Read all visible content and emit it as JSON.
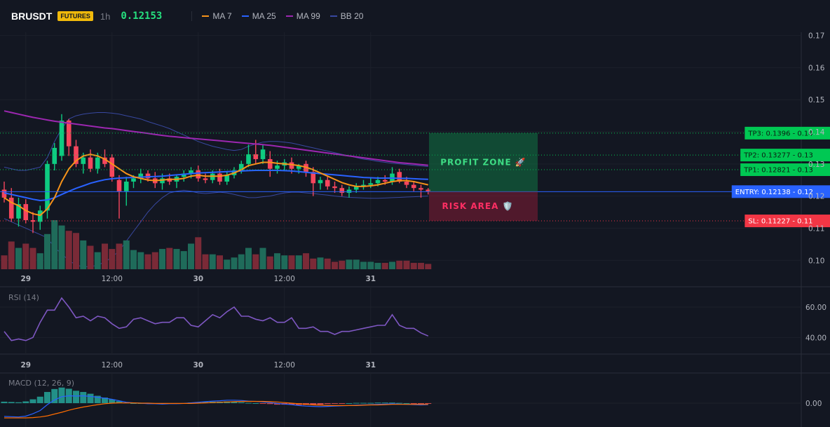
{
  "header": {
    "symbol": "BRUSDT",
    "badge": "FUTURES",
    "timeframe": "1h",
    "price": "0.12153",
    "legend": [
      {
        "label": "MA 7",
        "color": "#f7931a"
      },
      {
        "label": "MA 25",
        "color": "#2962ff"
      },
      {
        "label": "MA 99",
        "color": "#9c27b0"
      },
      {
        "label": "BB 20",
        "color": "#3848a0"
      }
    ]
  },
  "price_axis": [
    "0.17",
    "0.16",
    "0.15",
    "0.14",
    "0.13",
    "0.12",
    "0.11",
    "0.10"
  ],
  "price_ticks": [
    0.17,
    0.16,
    0.15,
    0.14,
    0.13,
    0.12,
    0.11,
    0.1
  ],
  "time_axis": [
    {
      "label": "29",
      "bold": true,
      "bar": 3
    },
    {
      "label": "12:00",
      "bold": false,
      "bar": 15
    },
    {
      "label": "30",
      "bold": true,
      "bar": 27
    },
    {
      "label": "12:00",
      "bold": false,
      "bar": 39
    },
    {
      "label": "31",
      "bold": true,
      "bar": 51
    }
  ],
  "levels": [
    {
      "name": "tp3",
      "label": "TP3: 0.1396",
      "axis": "0.14",
      "value": 0.1396,
      "color": "#00c853",
      "style": "dotted"
    },
    {
      "name": "tp2",
      "label": "TP2: 0.13277",
      "axis": "0.13",
      "value": 0.13277,
      "color": "#00c853",
      "style": "dotted"
    },
    {
      "name": "tp1",
      "label": "TP1: 0.12821",
      "axis": "0.13",
      "value": 0.12821,
      "color": "#00c853",
      "style": "dotted"
    },
    {
      "name": "entry",
      "label": "ENTRY: 0.12138",
      "axis": "0.12",
      "value": 0.12138,
      "color": "#2962ff",
      "style": "solid"
    },
    {
      "name": "sl",
      "label": "SL: 0.11227",
      "axis": "0.11",
      "value": 0.11227,
      "color": "#f23645",
      "style": "dotted"
    }
  ],
  "zones": {
    "profit_label": "PROFIT ZONE 🚀",
    "risk_label": "RISK AREA 🛡️"
  },
  "rsi": {
    "title": "RSI (14)",
    "axis": [
      "60.00",
      "40.00"
    ],
    "axis_values": [
      60,
      40
    ],
    "values": [
      44,
      38,
      39,
      38,
      40,
      50,
      58,
      58,
      66,
      60,
      53,
      54,
      51,
      54,
      53,
      49,
      46,
      47,
      52,
      53,
      51,
      49,
      50,
      50,
      53,
      53,
      48,
      47,
      51,
      55,
      53,
      57,
      60,
      54,
      54,
      52,
      51,
      53,
      50,
      50,
      53,
      46,
      46,
      47,
      44,
      44,
      42,
      44,
      44,
      45,
      46,
      47,
      48,
      48,
      55,
      48,
      46,
      46,
      43,
      41
    ]
  },
  "macd": {
    "title": "MACD (12, 26, 9)",
    "axis": "0.00",
    "macd_line": [
      -4.5,
      -4.6,
      -4.7,
      -4.4,
      -3.6,
      -2.5,
      -0.5,
      1.1,
      2.2,
      2.5,
      2.4,
      2.5,
      2.3,
      2.0,
      1.7,
      1.3,
      0.8,
      0.3,
      0.1,
      0.0,
      -0.2,
      -0.2,
      -0.3,
      -0.2,
      -0.2,
      -0.1,
      0.1,
      0.3,
      0.5,
      0.7,
      0.8,
      1.0,
      1.0,
      0.9,
      0.7,
      0.6,
      0.4,
      0.2,
      -0.1,
      -0.3,
      -0.5,
      -0.8,
      -1.0,
      -1.1,
      -1.2,
      -1.1,
      -1.0,
      -0.9,
      -0.8,
      -0.7,
      -0.6,
      -0.5,
      -0.4,
      -0.3,
      -0.2,
      -0.3,
      -0.4,
      -0.5,
      -0.6,
      -0.5
    ],
    "signal_line": [
      -5.0,
      -5.0,
      -5.0,
      -5.0,
      -4.9,
      -4.7,
      -4.3,
      -3.7,
      -3.1,
      -2.4,
      -1.8,
      -1.3,
      -0.9,
      -0.5,
      -0.2,
      0.0,
      0.1,
      0.1,
      0.1,
      0.0,
      0.0,
      -0.1,
      -0.1,
      -0.1,
      -0.1,
      -0.1,
      -0.1,
      0.0,
      0.1,
      0.2,
      0.3,
      0.4,
      0.5,
      0.6,
      0.6,
      0.6,
      0.6,
      0.5,
      0.4,
      0.2,
      0.0,
      -0.2,
      -0.4,
      -0.6,
      -0.7,
      -0.8,
      -0.8,
      -0.8,
      -0.8,
      -0.8,
      -0.7,
      -0.6,
      -0.6,
      -0.5,
      -0.4,
      -0.4,
      -0.4,
      -0.4,
      -0.4,
      -0.4
    ],
    "histogram": [
      0.5,
      0.4,
      0.3,
      0.6,
      1.3,
      2.2,
      3.8,
      4.8,
      5.3,
      4.9,
      4.2,
      3.8,
      3.2,
      2.5,
      1.9,
      1.3,
      0.7,
      0.2,
      0.0,
      0.0,
      -0.2,
      -0.1,
      -0.2,
      -0.1,
      -0.1,
      0.0,
      0.2,
      0.3,
      0.4,
      0.5,
      0.5,
      0.6,
      0.5,
      0.3,
      0.1,
      0.0,
      -0.2,
      -0.3,
      -0.5,
      -0.5,
      -0.5,
      -0.6,
      -0.6,
      -0.5,
      -0.5,
      -0.3,
      -0.2,
      -0.1,
      0.0,
      0.1,
      0.1,
      0.1,
      0.2,
      0.2,
      0.2,
      0.1,
      0.0,
      -0.1,
      -0.2,
      -0.1
    ]
  },
  "chart_data": {
    "type": "candlestick",
    "title": "BRUSDT",
    "ylim": [
      0.097,
      0.171
    ],
    "candles": [
      {
        "o": 0.122,
        "h": 0.1245,
        "l": 0.118,
        "c": 0.1195
      },
      {
        "o": 0.1195,
        "h": 0.1225,
        "l": 0.112,
        "c": 0.113
      },
      {
        "o": 0.113,
        "h": 0.1195,
        "l": 0.1105,
        "c": 0.1175
      },
      {
        "o": 0.1175,
        "h": 0.119,
        "l": 0.1115,
        "c": 0.1125
      },
      {
        "o": 0.1125,
        "h": 0.115,
        "l": 0.1085,
        "c": 0.112
      },
      {
        "o": 0.112,
        "h": 0.117,
        "l": 0.1095,
        "c": 0.1155
      },
      {
        "o": 0.1155,
        "h": 0.131,
        "l": 0.113,
        "c": 0.13
      },
      {
        "o": 0.13,
        "h": 0.1365,
        "l": 0.128,
        "c": 0.135
      },
      {
        "o": 0.1325,
        "h": 0.1455,
        "l": 0.131,
        "c": 0.1435
      },
      {
        "o": 0.1435,
        "h": 0.144,
        "l": 0.1325,
        "c": 0.1355
      },
      {
        "o": 0.1355,
        "h": 0.1375,
        "l": 0.129,
        "c": 0.13
      },
      {
        "o": 0.13,
        "h": 0.1335,
        "l": 0.127,
        "c": 0.132
      },
      {
        "o": 0.132,
        "h": 0.1345,
        "l": 0.1275,
        "c": 0.1285
      },
      {
        "o": 0.1285,
        "h": 0.1335,
        "l": 0.127,
        "c": 0.132
      },
      {
        "o": 0.132,
        "h": 0.1345,
        "l": 0.129,
        "c": 0.13
      },
      {
        "o": 0.132,
        "h": 0.133,
        "l": 0.1245,
        "c": 0.126
      },
      {
        "o": 0.125,
        "h": 0.1265,
        "l": 0.113,
        "c": 0.1215
      },
      {
        "o": 0.1215,
        "h": 0.126,
        "l": 0.117,
        "c": 0.1245
      },
      {
        "o": 0.1245,
        "h": 0.1265,
        "l": 0.1225,
        "c": 0.1255
      },
      {
        "o": 0.1255,
        "h": 0.1285,
        "l": 0.124,
        "c": 0.127
      },
      {
        "o": 0.127,
        "h": 0.128,
        "l": 0.1245,
        "c": 0.1255
      },
      {
        "o": 0.1255,
        "h": 0.1275,
        "l": 0.1225,
        "c": 0.124
      },
      {
        "o": 0.124,
        "h": 0.127,
        "l": 0.122,
        "c": 0.1255
      },
      {
        "o": 0.1255,
        "h": 0.127,
        "l": 0.1235,
        "c": 0.1245
      },
      {
        "o": 0.1245,
        "h": 0.1265,
        "l": 0.1225,
        "c": 0.126
      },
      {
        "o": 0.126,
        "h": 0.128,
        "l": 0.1245,
        "c": 0.127
      },
      {
        "o": 0.127,
        "h": 0.129,
        "l": 0.1255,
        "c": 0.128
      },
      {
        "o": 0.128,
        "h": 0.1295,
        "l": 0.1245,
        "c": 0.1255
      },
      {
        "o": 0.1255,
        "h": 0.127,
        "l": 0.124,
        "c": 0.125
      },
      {
        "o": 0.125,
        "h": 0.128,
        "l": 0.124,
        "c": 0.127
      },
      {
        "o": 0.127,
        "h": 0.1285,
        "l": 0.1235,
        "c": 0.1245
      },
      {
        "o": 0.1245,
        "h": 0.1275,
        "l": 0.1235,
        "c": 0.1265
      },
      {
        "o": 0.1265,
        "h": 0.129,
        "l": 0.1255,
        "c": 0.128
      },
      {
        "o": 0.128,
        "h": 0.131,
        "l": 0.127,
        "c": 0.13
      },
      {
        "o": 0.13,
        "h": 0.136,
        "l": 0.129,
        "c": 0.133
      },
      {
        "o": 0.133,
        "h": 0.1375,
        "l": 0.13,
        "c": 0.1315
      },
      {
        "o": 0.1315,
        "h": 0.136,
        "l": 0.13,
        "c": 0.1345
      },
      {
        "o": 0.1315,
        "h": 0.134,
        "l": 0.126,
        "c": 0.1285
      },
      {
        "o": 0.1285,
        "h": 0.131,
        "l": 0.127,
        "c": 0.1295
      },
      {
        "o": 0.1295,
        "h": 0.1315,
        "l": 0.128,
        "c": 0.1305
      },
      {
        "o": 0.1305,
        "h": 0.132,
        "l": 0.127,
        "c": 0.1285
      },
      {
        "o": 0.1285,
        "h": 0.13,
        "l": 0.127,
        "c": 0.1295
      },
      {
        "o": 0.13,
        "h": 0.131,
        "l": 0.126,
        "c": 0.1275
      },
      {
        "o": 0.1275,
        "h": 0.129,
        "l": 0.12,
        "c": 0.124
      },
      {
        "o": 0.124,
        "h": 0.126,
        "l": 0.122,
        "c": 0.125
      },
      {
        "o": 0.125,
        "h": 0.126,
        "l": 0.122,
        "c": 0.123
      },
      {
        "o": 0.123,
        "h": 0.1245,
        "l": 0.121,
        "c": 0.1225
      },
      {
        "o": 0.1225,
        "h": 0.1235,
        "l": 0.12,
        "c": 0.121
      },
      {
        "o": 0.121,
        "h": 0.123,
        "l": 0.1195,
        "c": 0.122
      },
      {
        "o": 0.122,
        "h": 0.124,
        "l": 0.121,
        "c": 0.123
      },
      {
        "o": 0.123,
        "h": 0.125,
        "l": 0.122,
        "c": 0.1235
      },
      {
        "o": 0.1235,
        "h": 0.1255,
        "l": 0.1225,
        "c": 0.124
      },
      {
        "o": 0.124,
        "h": 0.126,
        "l": 0.123,
        "c": 0.125
      },
      {
        "o": 0.125,
        "h": 0.1265,
        "l": 0.1235,
        "c": 0.1245
      },
      {
        "o": 0.1245,
        "h": 0.129,
        "l": 0.1235,
        "c": 0.127
      },
      {
        "o": 0.1275,
        "h": 0.1285,
        "l": 0.124,
        "c": 0.1245
      },
      {
        "o": 0.1245,
        "h": 0.126,
        "l": 0.1225,
        "c": 0.1235
      },
      {
        "o": 0.1235,
        "h": 0.1245,
        "l": 0.1215,
        "c": 0.1225
      },
      {
        "o": 0.1225,
        "h": 0.1235,
        "l": 0.1195,
        "c": 0.122
      },
      {
        "o": 0.122,
        "h": 0.1225,
        "l": 0.1205,
        "c": 0.1215
      }
    ],
    "volume": [
      13,
      26,
      20,
      24,
      20,
      15,
      33,
      46,
      41,
      36,
      34,
      27,
      22,
      16,
      24,
      19,
      24,
      27,
      18,
      16,
      14,
      16,
      19,
      20,
      19,
      17,
      24,
      30,
      14,
      14,
      13,
      9,
      11,
      14,
      20,
      14,
      20,
      12,
      15,
      13,
      13,
      13,
      15,
      10,
      11,
      10,
      7,
      8,
      9,
      9,
      7,
      7,
      6,
      6,
      7,
      8,
      8,
      6,
      6,
      5
    ],
    "ma7": [
      0.1195,
      0.118,
      0.117,
      0.1155,
      0.1145,
      0.114,
      0.116,
      0.1195,
      0.1245,
      0.1285,
      0.131,
      0.1325,
      0.133,
      0.1325,
      0.1315,
      0.13,
      0.1285,
      0.127,
      0.126,
      0.1255,
      0.125,
      0.1248,
      0.125,
      0.1252,
      0.1252,
      0.1255,
      0.1262,
      0.1265,
      0.1262,
      0.1262,
      0.1262,
      0.1265,
      0.1272,
      0.1282,
      0.1295,
      0.13,
      0.1305,
      0.1305,
      0.1302,
      0.13,
      0.1298,
      0.1295,
      0.129,
      0.1282,
      0.1272,
      0.1262,
      0.1252,
      0.1242,
      0.1235,
      0.123,
      0.123,
      0.1232,
      0.1235,
      0.124,
      0.1245,
      0.1248,
      0.1248,
      0.1245,
      0.124,
      0.1235
    ],
    "ma25": [
      0.121,
      0.1205,
      0.12,
      0.1195,
      0.119,
      0.1186,
      0.1188,
      0.1195,
      0.1205,
      0.1215,
      0.1224,
      0.1232,
      0.124,
      0.1246,
      0.1251,
      0.1254,
      0.1256,
      0.1257,
      0.1258,
      0.1259,
      0.126,
      0.1261,
      0.1262,
      0.1264,
      0.1266,
      0.1268,
      0.127,
      0.1272,
      0.1273,
      0.1274,
      0.1275,
      0.1276,
      0.1277,
      0.1278,
      0.1279,
      0.128,
      0.128,
      0.128,
      0.128,
      0.1279,
      0.1278,
      0.1276,
      0.1274,
      0.1272,
      0.127,
      0.1268,
      0.1266,
      0.1264,
      0.1262,
      0.126,
      0.1258,
      0.1257,
      0.1256,
      0.1256,
      0.1256,
      0.1255,
      0.1255,
      0.1254,
      0.1253,
      0.1252
    ],
    "ma99": [
      0.1465,
      0.146,
      0.1455,
      0.145,
      0.1445,
      0.1441,
      0.1437,
      0.1433,
      0.143,
      0.1427,
      0.1424,
      0.1421,
      0.1418,
      0.1415,
      0.1412,
      0.141,
      0.1407,
      0.1404,
      0.1401,
      0.1398,
      0.1395,
      0.1392,
      0.1389,
      0.1386,
      0.1384,
      0.1382,
      0.138,
      0.1378,
      0.1376,
      0.1374,
      0.1372,
      0.137,
      0.1368,
      0.1366,
      0.1364,
      0.1362,
      0.136,
      0.1358,
      0.1355,
      0.1352,
      0.1349,
      0.1346,
      0.1343,
      0.134,
      0.1337,
      0.1334,
      0.1331,
      0.1328,
      0.1325,
      0.1322,
      0.1319,
      0.1316,
      0.1313,
      0.131,
      0.1307,
      0.1304,
      0.1302,
      0.13,
      0.1298,
      0.1296
    ],
    "bb_upper": [
      0.129,
      0.1285,
      0.128,
      0.128,
      0.1285,
      0.129,
      0.132,
      0.137,
      0.141,
      0.144,
      0.145,
      0.1455,
      0.1458,
      0.146,
      0.146,
      0.1458,
      0.1455,
      0.145,
      0.1445,
      0.144,
      0.1432,
      0.1425,
      0.1418,
      0.141,
      0.14,
      0.139,
      0.138,
      0.137,
      0.1362,
      0.1355,
      0.135,
      0.1345,
      0.1342,
      0.1345,
      0.1355,
      0.1362,
      0.1368,
      0.137,
      0.137,
      0.1368,
      0.1365,
      0.136,
      0.1355,
      0.135,
      0.1345,
      0.134,
      0.1335,
      0.133,
      0.1325,
      0.132,
      0.1315,
      0.1312,
      0.1308,
      0.1305,
      0.1302,
      0.13,
      0.1298,
      0.1296,
      0.1294,
      0.1292
    ],
    "bb_lower": [
      0.113,
      0.112,
      0.111,
      0.11,
      0.109,
      0.108,
      0.107,
      0.104,
      0.102,
      0.1,
      0.0985,
      0.098,
      0.098,
      0.0985,
      0.0995,
      0.101,
      0.103,
      0.106,
      0.109,
      0.112,
      0.115,
      0.1175,
      0.1195,
      0.121,
      0.1215,
      0.1218,
      0.1215,
      0.121,
      0.1208,
      0.121,
      0.1212,
      0.121,
      0.1205,
      0.12,
      0.1195,
      0.1195,
      0.1198,
      0.12,
      0.1205,
      0.121,
      0.1212,
      0.1212,
      0.121,
      0.1208,
      0.1205,
      0.1203,
      0.12,
      0.1198,
      0.1196,
      0.1195,
      0.1194,
      0.1193,
      0.1193,
      0.1194,
      0.1195,
      0.1196,
      0.1197,
      0.1198,
      0.1199,
      0.12
    ]
  }
}
